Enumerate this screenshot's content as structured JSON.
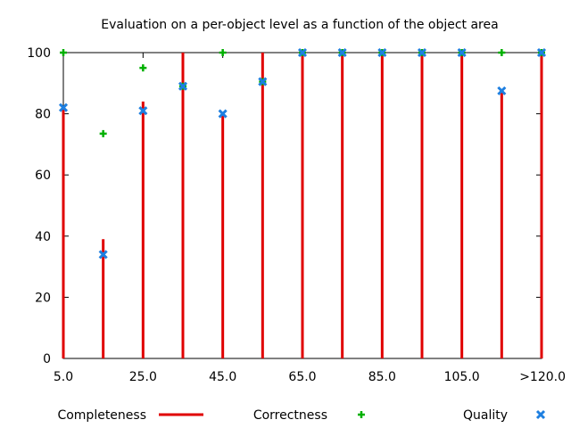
{
  "chart_data": {
    "type": "bar",
    "title": "Evaluation on a per-object level as a function of the object area",
    "xlabel": "",
    "ylabel": "",
    "ylim": [
      0,
      100
    ],
    "grid": false,
    "legend_position": "bottom",
    "y_ticks": [
      "0",
      "20",
      "40",
      "60",
      "80",
      "100"
    ],
    "x_ticks": [
      "5.0",
      "25.0",
      "45.0",
      "65.0",
      "85.0",
      "105.0",
      ">120.0"
    ],
    "categories": [
      "5",
      "15",
      "25",
      "35",
      "45",
      "55",
      "65",
      "75",
      "85",
      "95",
      "105",
      "115",
      ">120"
    ],
    "series": [
      {
        "name": "Completeness",
        "style": "impulse",
        "color": "#e00000",
        "values": [
          82,
          39,
          84,
          100,
          80,
          100,
          100,
          100,
          100,
          100,
          100,
          87,
          100
        ]
      },
      {
        "name": "Correctness",
        "style": "plus",
        "color": "#00b000",
        "values": [
          100,
          73.5,
          95,
          89,
          100,
          90.5,
          100,
          100,
          100,
          100,
          100,
          100,
          100
        ]
      },
      {
        "name": "Quality",
        "style": "cross",
        "color": "#1e7fe0",
        "values": [
          82,
          34,
          81,
          89,
          80,
          90.5,
          100,
          100,
          100,
          100,
          100,
          87.5,
          100
        ]
      }
    ]
  }
}
